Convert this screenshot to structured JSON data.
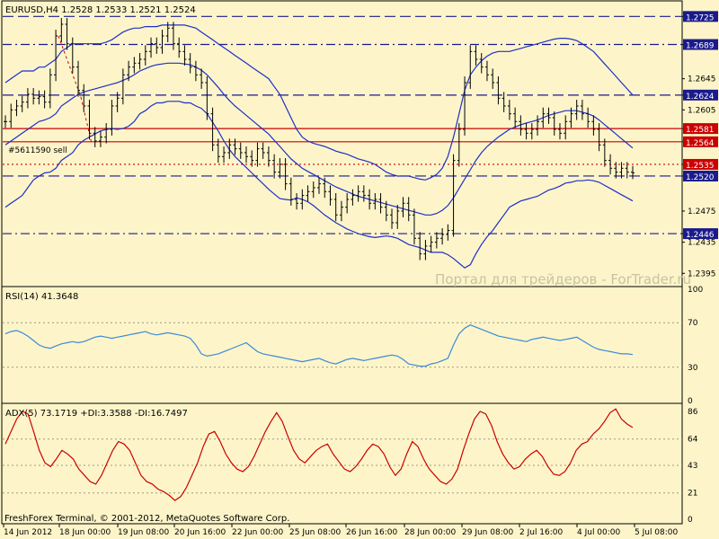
{
  "colors": {
    "background": "#fdf5c9",
    "candle": "#000000",
    "bollinger": "#1f2fc8",
    "navy_level": "#1a1a8c",
    "red_level": "#cc0000",
    "rsi_line": "#3b8ad8",
    "adx_line": "#cc0000"
  },
  "main": {
    "header": "EURUSD,H4  1.2528 1.2533 1.2521 1.2524",
    "order_label": "#5611590 sell",
    "watermark": "Портал для трейдеров - ForTrader.ru"
  },
  "rsi": {
    "header": "RSI(14) 41.3648"
  },
  "adx": {
    "header": "ADX(5) 73.1719 +DI:3.3588 -DI:16.7497"
  },
  "footer": {
    "copyright": "FreshForex Terminal, © 2001-2012, MetaQuotes Software Corp."
  },
  "chart_data": [
    {
      "type": "candlestick",
      "symbol": "EURUSD",
      "timeframe": "H4",
      "ohlc_last": [
        1.2528,
        1.2533,
        1.2521,
        1.2524
      ],
      "ylim": [
        1.2378,
        1.2745
      ],
      "y_tick_labels": [
        "1.2725",
        "1.2689",
        "1.2645",
        "1.2624",
        "1.2605",
        "1.2581",
        "1.2564",
        "1.2535",
        "1.2520",
        "1.2475",
        "1.2446",
        "1.2435",
        "1.2395"
      ],
      "x_tick_labels": [
        "14 Jun 2012",
        "18 Jun 00:00",
        "19 Jun 08:00",
        "20 Jun 16:00",
        "22 Jun 00:00",
        "25 Jun 08:00",
        "26 Jun 16:00",
        "28 Jun 00:00",
        "29 Jun 08:00",
        "2 Jul 16:00",
        "4 Jul 00:00",
        "5 Jul 08:00"
      ],
      "levels": [
        {
          "value": 1.2725,
          "label": "1.2725",
          "style": "dash",
          "color": "#1a1a8c"
        },
        {
          "value": 1.2689,
          "label": "1.2689",
          "style": "dash-dot",
          "color": "#1a1a8c"
        },
        {
          "value": 1.2624,
          "label": "1.2624",
          "style": "dash",
          "color": "#1a1a8c"
        },
        {
          "value": 1.2581,
          "label": "1.2581",
          "style": "solid",
          "color": "#cc0000"
        },
        {
          "value": 1.2564,
          "label": "1.2564",
          "style": "solid",
          "color": "#cc0000"
        },
        {
          "value": 1.2535,
          "label": "1.2535",
          "style": "dot",
          "color": "#cc0000"
        },
        {
          "value": 1.252,
          "label": "1.2520",
          "style": "dash",
          "color": "#1a1a8c"
        },
        {
          "value": 1.2446,
          "label": "1.2446",
          "style": "dash-dot",
          "color": "#1a1a8c"
        }
      ],
      "close": [
        1.259,
        1.2605,
        1.261,
        1.2615,
        1.2625,
        1.262,
        1.2622,
        1.2615,
        1.265,
        1.27,
        1.2715,
        1.269,
        1.266,
        1.263,
        1.261,
        1.2575,
        1.2565,
        1.257,
        1.258,
        1.261,
        1.262,
        1.265,
        1.266,
        1.2665,
        1.267,
        1.268,
        1.269,
        1.2685,
        1.27,
        1.271,
        1.269,
        1.268,
        1.267,
        1.266,
        1.265,
        1.264,
        1.26,
        1.256,
        1.2545,
        1.255,
        1.256,
        1.2555,
        1.255,
        1.2545,
        1.254,
        1.2555,
        1.255,
        1.254,
        1.2525,
        1.2535,
        1.251,
        1.249,
        1.2485,
        1.2495,
        1.25,
        1.2505,
        1.251,
        1.25,
        1.249,
        1.247,
        1.248,
        1.249,
        1.2495,
        1.25,
        1.2495,
        1.2485,
        1.249,
        1.248,
        1.247,
        1.246,
        1.2475,
        1.2485,
        1.247,
        1.244,
        1.242,
        1.243,
        1.2435,
        1.244,
        1.2445,
        1.245,
        1.254,
        1.258,
        1.264,
        1.268,
        1.267,
        1.266,
        1.265,
        1.264,
        1.262,
        1.261,
        1.26,
        1.259,
        1.258,
        1.2575,
        1.258,
        1.259,
        1.26,
        1.2595,
        1.258,
        1.2575,
        1.259,
        1.26,
        1.261,
        1.26,
        1.259,
        1.258,
        1.256,
        1.254,
        1.253,
        1.2525,
        1.253,
        1.2525,
        1.2524
      ],
      "bb_upper": [
        1.264,
        1.2645,
        1.265,
        1.2655,
        1.2655,
        1.2655,
        1.266,
        1.266,
        1.2665,
        1.267,
        1.268,
        1.2685,
        1.269,
        1.269,
        1.269,
        1.269,
        1.269,
        1.269,
        1.2692,
        1.2695,
        1.27,
        1.2705,
        1.2708,
        1.271,
        1.271,
        1.2712,
        1.2712,
        1.2712,
        1.2714,
        1.2714,
        1.2714,
        1.2714,
        1.2714,
        1.2712,
        1.271,
        1.2705,
        1.27,
        1.2695,
        1.269,
        1.2685,
        1.268,
        1.2675,
        1.267,
        1.2665,
        1.266,
        1.2655,
        1.265,
        1.2645,
        1.2635,
        1.2625,
        1.261,
        1.2595,
        1.258,
        1.257,
        1.2565,
        1.2562,
        1.256,
        1.2558,
        1.2555,
        1.2552,
        1.255,
        1.2548,
        1.2545,
        1.2542,
        1.254,
        1.2538,
        1.2535,
        1.253,
        1.2525,
        1.2522,
        1.252,
        1.252,
        1.252,
        1.2518,
        1.2516,
        1.2515,
        1.2518,
        1.2522,
        1.253,
        1.2545,
        1.257,
        1.26,
        1.263,
        1.265,
        1.266,
        1.2668,
        1.2674,
        1.2678,
        1.268,
        1.268,
        1.268,
        1.2682,
        1.2684,
        1.2686,
        1.2688,
        1.269,
        1.2692,
        1.2694,
        1.2696,
        1.2697,
        1.2697,
        1.2696,
        1.2694,
        1.269,
        1.2685,
        1.268,
        1.2672,
        1.2664,
        1.2656,
        1.2648,
        1.264,
        1.2632,
        1.2624
      ],
      "bb_middle": [
        1.256,
        1.2565,
        1.257,
        1.2575,
        1.258,
        1.2585,
        1.259,
        1.2592,
        1.2595,
        1.26,
        1.261,
        1.2615,
        1.262,
        1.2625,
        1.2628,
        1.263,
        1.2632,
        1.2634,
        1.2636,
        1.2638,
        1.264,
        1.2643,
        1.2646,
        1.265,
        1.2655,
        1.2658,
        1.2661,
        1.2663,
        1.2664,
        1.2665,
        1.2665,
        1.2665,
        1.2664,
        1.2663,
        1.266,
        1.2656,
        1.265,
        1.2642,
        1.2634,
        1.2625,
        1.2617,
        1.261,
        1.2604,
        1.2598,
        1.2592,
        1.2586,
        1.258,
        1.2574,
        1.2566,
        1.2558,
        1.255,
        1.2542,
        1.2536,
        1.253,
        1.2526,
        1.2522,
        1.2518,
        1.2514,
        1.251,
        1.2506,
        1.2503,
        1.25,
        1.2497,
        1.2494,
        1.2492,
        1.249,
        1.2488,
        1.2486,
        1.2484,
        1.2482,
        1.248,
        1.2478,
        1.2476,
        1.2474,
        1.2472,
        1.247,
        1.247,
        1.2472,
        1.2476,
        1.2482,
        1.2492,
        1.2504,
        1.2516,
        1.2528,
        1.254,
        1.255,
        1.2558,
        1.2564,
        1.257,
        1.2575,
        1.258,
        1.2583,
        1.2586,
        1.2588,
        1.259,
        1.2592,
        1.2595,
        1.2598,
        1.26,
        1.2602,
        1.2604,
        1.2604,
        1.2604,
        1.2602,
        1.26,
        1.2597,
        1.2592,
        1.2586,
        1.258,
        1.2574,
        1.2568,
        1.2562,
        1.2556
      ],
      "bb_lower": [
        1.248,
        1.2485,
        1.249,
        1.2495,
        1.2505,
        1.2515,
        1.252,
        1.2524,
        1.2525,
        1.253,
        1.254,
        1.2545,
        1.255,
        1.256,
        1.2566,
        1.257,
        1.2574,
        1.2578,
        1.258,
        1.2581,
        1.258,
        1.2581,
        1.2584,
        1.259,
        1.26,
        1.2604,
        1.261,
        1.2614,
        1.2614,
        1.2616,
        1.2616,
        1.2616,
        1.2614,
        1.2614,
        1.261,
        1.2607,
        1.26,
        1.2589,
        1.2578,
        1.2565,
        1.2554,
        1.2545,
        1.2538,
        1.2531,
        1.2524,
        1.2517,
        1.251,
        1.2503,
        1.2497,
        1.2491,
        1.249,
        1.2489,
        1.2492,
        1.249,
        1.2487,
        1.2482,
        1.2476,
        1.247,
        1.2465,
        1.246,
        1.2456,
        1.2452,
        1.2449,
        1.2446,
        1.2444,
        1.2442,
        1.2441,
        1.2442,
        1.2443,
        1.2442,
        1.244,
        1.2436,
        1.2432,
        1.243,
        1.2428,
        1.2425,
        1.2422,
        1.2422,
        1.2422,
        1.2419,
        1.2414,
        1.2408,
        1.2402,
        1.2406,
        1.242,
        1.2432,
        1.2442,
        1.245,
        1.246,
        1.247,
        1.248,
        1.2484,
        1.2488,
        1.249,
        1.2492,
        1.2494,
        1.2498,
        1.2502,
        1.2504,
        1.2507,
        1.2511,
        1.2512,
        1.2514,
        1.2514,
        1.2515,
        1.2514,
        1.2512,
        1.2508,
        1.2504,
        1.25,
        1.2496,
        1.2492,
        1.2488
      ]
    },
    {
      "type": "line",
      "name": "RSI(14)",
      "last_value": 41.3648,
      "ylim": [
        0,
        100
      ],
      "y_tick_labels": [
        "100",
        "70",
        "30",
        "0"
      ],
      "levels": [
        70,
        30
      ],
      "values": [
        60,
        62,
        63,
        61,
        58,
        54,
        50,
        48,
        47,
        49,
        51,
        52,
        53,
        52,
        53,
        55,
        57,
        58,
        57,
        56,
        57,
        58,
        59,
        60,
        61,
        62,
        60,
        59,
        60,
        61,
        60,
        59,
        58,
        56,
        50,
        42,
        40,
        41,
        42,
        44,
        46,
        48,
        50,
        52,
        48,
        44,
        42,
        41,
        40,
        39,
        38,
        37,
        36,
        35,
        36,
        37,
        38,
        36,
        34,
        33,
        35,
        37,
        38,
        37,
        36,
        37,
        38,
        39,
        40,
        41,
        40,
        37,
        33,
        32,
        31,
        31,
        33,
        34,
        36,
        38,
        50,
        60,
        65,
        68,
        66,
        64,
        62,
        60,
        58,
        57,
        56,
        55,
        54,
        53,
        55,
        56,
        57,
        56,
        55,
        54,
        55,
        56,
        57,
        54,
        51,
        48,
        46,
        45,
        44,
        43,
        42,
        42,
        41.4
      ]
    },
    {
      "type": "line",
      "name": "ADX(5)",
      "last_value": 73.1719,
      "plus_di": 3.3588,
      "minus_di": 16.7497,
      "ylim": [
        0,
        86
      ],
      "y_tick_labels": [
        "86",
        "64",
        "43",
        "21",
        "0"
      ],
      "values": [
        60,
        70,
        80,
        86,
        84,
        70,
        55,
        45,
        42,
        48,
        55,
        52,
        48,
        40,
        35,
        30,
        28,
        35,
        45,
        55,
        62,
        60,
        55,
        45,
        35,
        30,
        28,
        24,
        22,
        19,
        15,
        18,
        25,
        35,
        45,
        58,
        68,
        70,
        62,
        52,
        45,
        40,
        38,
        42,
        50,
        60,
        70,
        78,
        85,
        78,
        66,
        55,
        48,
        45,
        50,
        55,
        58,
        60,
        52,
        46,
        40,
        38,
        42,
        48,
        55,
        60,
        58,
        52,
        42,
        35,
        40,
        52,
        62,
        58,
        48,
        40,
        35,
        30,
        28,
        32,
        40,
        55,
        68,
        80,
        86,
        84,
        75,
        62,
        52,
        45,
        40,
        42,
        48,
        52,
        55,
        50,
        42,
        36,
        35,
        38,
        45,
        55,
        60,
        62,
        68,
        72,
        78,
        85,
        88,
        80,
        76,
        73.2
      ]
    }
  ]
}
